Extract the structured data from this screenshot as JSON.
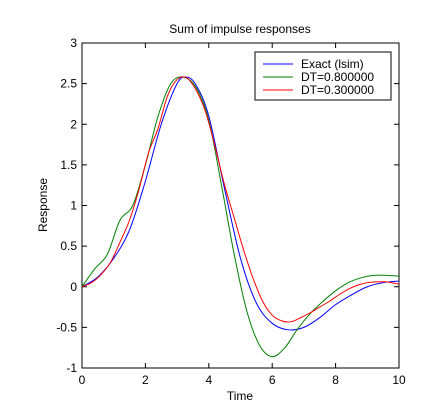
{
  "chart_data": {
    "type": "line",
    "title": "Sum of impulse responses",
    "xlabel": "Time",
    "ylabel": "Response",
    "xlim": [
      0,
      10
    ],
    "ylim": [
      -1,
      3
    ],
    "grid": false,
    "legend_position": "top-right",
    "x_ticks": [
      0,
      2,
      4,
      6,
      8,
      10
    ],
    "x_tick_labels": [
      "0",
      "2",
      "4",
      "6",
      "8",
      "10"
    ],
    "y_ticks": [
      -1,
      -0.5,
      0,
      0.5,
      1,
      1.5,
      2,
      2.5,
      3
    ],
    "y_tick_labels": [
      "-1",
      "-0.5",
      "0",
      "0.5",
      "1",
      "1.5",
      "2",
      "2.5",
      "3"
    ],
    "series": [
      {
        "name": "Exact (lsim)",
        "color": "#0000ff",
        "x": [
          0,
          0.5,
          1.0,
          1.5,
          2.0,
          2.5,
          3.0,
          3.3,
          3.6,
          4.0,
          4.5,
          5.0,
          5.5,
          6.0,
          6.5,
          7.0,
          7.5,
          8.0,
          8.5,
          9.0,
          9.5,
          10.0
        ],
        "y": [
          0,
          0.12,
          0.35,
          0.7,
          1.3,
          2.0,
          2.5,
          2.58,
          2.48,
          2.1,
          1.2,
          0.35,
          -0.2,
          -0.45,
          -0.53,
          -0.5,
          -0.38,
          -0.22,
          -0.1,
          0.0,
          0.05,
          0.07
        ]
      },
      {
        "name": "DT=0.800000",
        "color": "#008000",
        "x": [
          0,
          0.4,
          0.8,
          1.2,
          1.6,
          2.0,
          2.4,
          2.8,
          3.2,
          3.6,
          4.0,
          4.4,
          4.8,
          5.2,
          5.6,
          6.0,
          6.4,
          6.8,
          7.2,
          7.6,
          8.0,
          8.4,
          8.8,
          9.2,
          9.6,
          10.0
        ],
        "y": [
          0,
          0.22,
          0.4,
          0.82,
          1.0,
          1.5,
          2.1,
          2.5,
          2.58,
          2.45,
          2.05,
          1.25,
          0.4,
          -0.3,
          -0.72,
          -0.86,
          -0.75,
          -0.52,
          -0.33,
          -0.18,
          -0.05,
          0.05,
          0.11,
          0.14,
          0.14,
          0.13
        ]
      },
      {
        "name": "DT=0.300000",
        "color": "#ff0000",
        "x": [
          0,
          0.3,
          0.6,
          0.9,
          1.2,
          1.5,
          1.8,
          2.1,
          2.4,
          2.7,
          3.0,
          3.3,
          3.6,
          3.9,
          4.2,
          4.5,
          4.8,
          5.1,
          5.4,
          5.7,
          6.0,
          6.3,
          6.6,
          6.9,
          7.2,
          7.5,
          7.8,
          8.1,
          8.4,
          8.7,
          9.0,
          9.3,
          9.6,
          9.9,
          10.0
        ],
        "y": [
          0,
          0.05,
          0.15,
          0.3,
          0.55,
          0.82,
          1.2,
          1.65,
          1.95,
          2.35,
          2.55,
          2.57,
          2.42,
          2.15,
          1.72,
          1.25,
          0.85,
          0.45,
          0.1,
          -0.18,
          -0.35,
          -0.42,
          -0.43,
          -0.38,
          -0.32,
          -0.25,
          -0.18,
          -0.1,
          -0.03,
          0.02,
          0.05,
          0.06,
          0.06,
          0.04,
          0.03
        ]
      }
    ]
  }
}
